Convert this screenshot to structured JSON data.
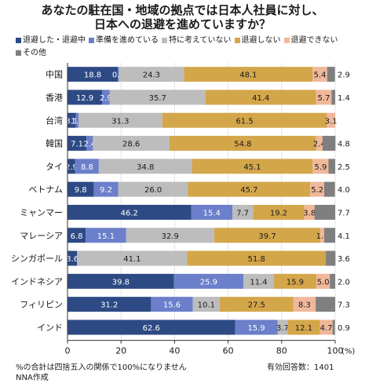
{
  "title": [
    "あなたの駐在国・地域の拠点では日本人社員に対し、",
    "日本への退避を進めていますか？"
  ],
  "footnote": [
    "%の合計は四捨五入の関係で100%になりません",
    "NNA作成"
  ],
  "sample": "有効回答数：1401",
  "chart_data": {
    "type": "bar",
    "orientation": "horizontal",
    "stacked": true,
    "categories": [
      "中国",
      "香港",
      "台湾",
      "韓国",
      "タイ",
      "ベトナム",
      "ミャンマー",
      "マレーシア",
      "シンガポール",
      "インドネシア",
      "フィリピン",
      "インド"
    ],
    "series": [
      {
        "name": "退避した・退避中",
        "color": "#2e4a85",
        "values": [
          18.8,
          12.9,
          3.1,
          7.1,
          2.9,
          9.8,
          46.2,
          6.8,
          3.6,
          39.8,
          31.2,
          62.6
        ]
      },
      {
        "name": "準備を進めている",
        "color": "#6b7fca",
        "values": [
          0.4,
          2.9,
          1.0,
          2.4,
          8.8,
          9.2,
          15.4,
          15.1,
          0,
          25.9,
          15.6,
          15.9
        ]
      },
      {
        "name": "特に考えていない",
        "color": "#bdbdbd",
        "values": [
          24.3,
          35.7,
          31.3,
          28.6,
          34.8,
          26.0,
          7.7,
          32.9,
          41.1,
          11.4,
          10.1,
          3.7
        ]
      },
      {
        "name": "退避しない",
        "color": "#d4a64a",
        "values": [
          48.1,
          41.4,
          61.5,
          54.8,
          45.1,
          45.7,
          19.2,
          39.7,
          51.8,
          15.9,
          27.5,
          12.1
        ]
      },
      {
        "name": "退避できない",
        "color": "#f0b89a",
        "values": [
          5.4,
          5.7,
          3.1,
          2.4,
          5.9,
          5.2,
          3.8,
          1.4,
          0,
          5.0,
          8.3,
          4.7
        ]
      },
      {
        "name": "その他",
        "color": "#7f7f7f",
        "values": [
          2.9,
          1.4,
          0,
          4.8,
          2.5,
          4.0,
          7.7,
          4.1,
          3.6,
          2.0,
          7.3,
          0.9
        ]
      }
    ],
    "xlim": [
      0,
      100
    ],
    "xticks": [
      "0",
      "20",
      "40",
      "60",
      "80",
      "100"
    ],
    "xunit": "(%)",
    "legend_position": "top"
  }
}
